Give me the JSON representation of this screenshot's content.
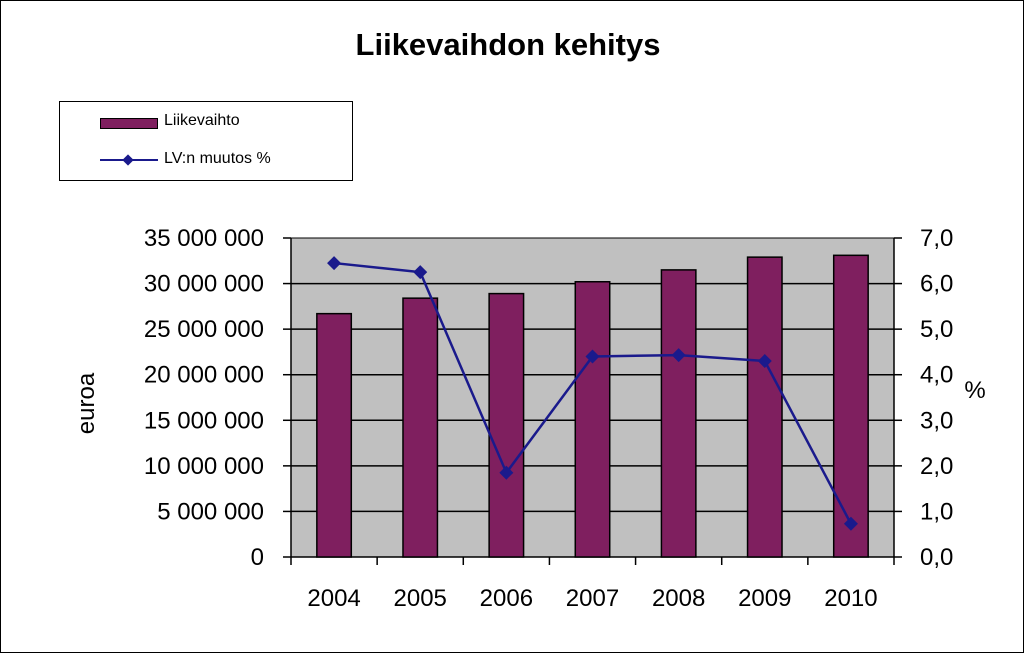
{
  "chart_data": {
    "type": "bar",
    "title": "Liikevaihdon kehitys",
    "categories": [
      "2004",
      "2005",
      "2006",
      "2007",
      "2008",
      "2009",
      "2010"
    ],
    "series": [
      {
        "name": "Liikevaihto",
        "type": "bar",
        "axis": "left",
        "color": "#7f1f5f",
        "values": [
          26700000,
          28400000,
          28900000,
          30200000,
          31500000,
          32900000,
          33100000
        ]
      },
      {
        "name": "LV:n muutos %",
        "type": "line",
        "axis": "right",
        "color": "#1a1a8c",
        "values": [
          6.45,
          6.25,
          1.85,
          4.4,
          4.43,
          4.3,
          0.73
        ]
      }
    ],
    "ylabel": "euroa",
    "y2label": "%",
    "ylim": [
      0,
      35000000
    ],
    "y2lim": [
      0,
      7
    ],
    "yticks": [
      "0",
      "5 000 000",
      "10 000 000",
      "15 000 000",
      "20 000 000",
      "25 000 000",
      "30 000 000",
      "35 000 000"
    ],
    "y2ticks": [
      "0,0",
      "1,0",
      "2,0",
      "3,0",
      "4,0",
      "5,0",
      "6,0",
      "7,0"
    ],
    "plot_background": "#c0c0c0",
    "grid": true,
    "legend": "top-left"
  }
}
